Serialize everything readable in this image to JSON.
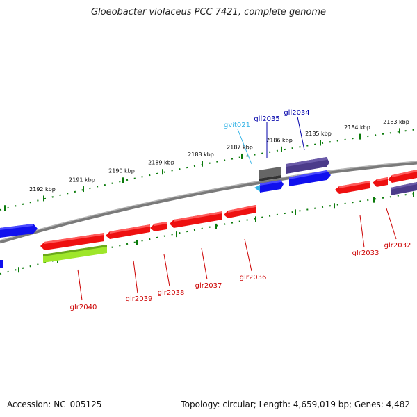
{
  "title": "Gloeobacter violaceus PCC 7421, complete genome",
  "footer": {
    "accession": "Accession: NC_005125",
    "summary": "Topology: circular; Length: 4,659,019 bp; Genes: 4,482"
  },
  "colors": {
    "forward_gene": "#1010ee",
    "reverse_gene": "#ee1010",
    "purple_gene": "#4b3b8a",
    "gray_gene": "#555555",
    "green_gene": "#9ee62a",
    "light_blue_gene": "#34b3e6",
    "ruler_ticks": "#0a7a0a",
    "backbone": "#808080",
    "forward_label": "#0000aa",
    "reverse_label": "#cc0000",
    "trna_label": "#34b3e6"
  },
  "ruler_labels": [
    "2183 kbp",
    "2184 kbp",
    "2185 kbp",
    "2186 kbp",
    "2187 kbp",
    "2188 kbp",
    "2189 kbp",
    "2190 kbp",
    "2191 kbp",
    "2192 kbp"
  ],
  "gene_labels": {
    "forward": [
      "gll2035",
      "gll2034"
    ],
    "trna": [
      "gvit021"
    ],
    "reverse": [
      "glr2040",
      "glr2039",
      "glr2038",
      "glr2037",
      "glr2036",
      "glr2033",
      "glr2032"
    ]
  }
}
